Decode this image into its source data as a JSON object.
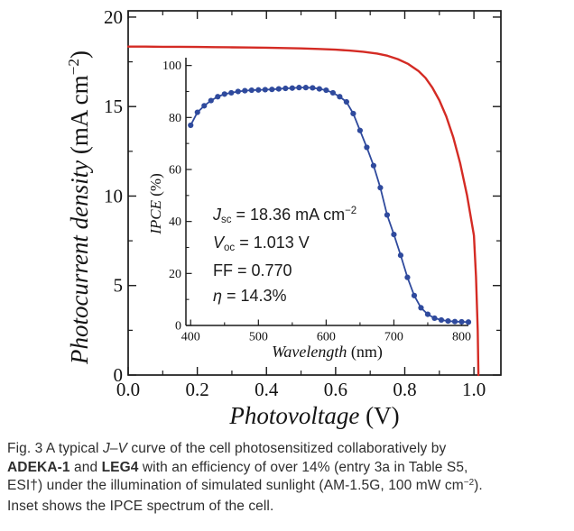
{
  "figure": {
    "background": "#ffffff",
    "axis_color": "#1a1a1a",
    "jv_color": "#d42b24",
    "ipce_color": "#2f4a9d"
  },
  "chart_data": [
    {
      "type": "line",
      "title": "",
      "xlabel": "Photovoltage (V)",
      "ylabel": "Photocurrent density (mA cm−2)",
      "xlim": [
        0,
        1.078
      ],
      "ylim": [
        0,
        20.35
      ],
      "grid": false,
      "legend": false,
      "xticks": [
        0,
        0.2,
        0.4,
        0.6,
        0.8,
        1.0
      ],
      "xtick_labels": [
        "0.0",
        "0.2",
        "0.4",
        "0.6",
        "0.8",
        "1.0"
      ],
      "xticks_minor": [
        0.1,
        0.3,
        0.5,
        0.7,
        0.9
      ],
      "yticks": [
        0,
        5,
        10,
        15,
        20
      ],
      "ytick_labels": [
        "0",
        "5",
        "10",
        "15",
        "20"
      ],
      "yticks_minor": [
        2.5,
        7.5,
        12.5,
        17.5
      ],
      "series": [
        {
          "name": "J-V curve",
          "color": "#d42b24",
          "x": [
            0.0,
            0.05,
            0.1,
            0.15,
            0.2,
            0.25,
            0.3,
            0.35,
            0.4,
            0.45,
            0.5,
            0.55,
            0.6,
            0.64,
            0.68,
            0.72,
            0.75,
            0.78,
            0.81,
            0.84,
            0.86,
            0.88,
            0.9,
            0.92,
            0.94,
            0.96,
            0.98,
            1.0,
            1.006,
            1.011,
            1.013
          ],
          "y": [
            18.35,
            18.35,
            18.34,
            18.34,
            18.33,
            18.32,
            18.31,
            18.3,
            18.29,
            18.27,
            18.25,
            18.22,
            18.18,
            18.13,
            18.06,
            17.96,
            17.84,
            17.65,
            17.38,
            16.98,
            16.6,
            16.05,
            15.35,
            14.45,
            13.3,
            11.85,
            10.05,
            7.8,
            5.5,
            2.5,
            0.0
          ]
        }
      ]
    },
    {
      "type": "line",
      "title": "",
      "xlabel": "Wavelength (nm)",
      "ylabel": "IPCE (%)",
      "xlim": [
        393,
        810
      ],
      "ylim": [
        0,
        103
      ],
      "grid": false,
      "legend": false,
      "markers": true,
      "xticks": [
        400,
        500,
        600,
        700,
        800
      ],
      "xtick_labels": [
        "400",
        "500",
        "600",
        "700",
        "800"
      ],
      "xticks_minor": [
        450,
        550,
        650,
        750
      ],
      "yticks": [
        0,
        20,
        40,
        60,
        80,
        100
      ],
      "ytick_labels": [
        "0",
        "20",
        "40",
        "60",
        "80",
        "100"
      ],
      "yticks_minor": [
        10,
        30,
        50,
        70,
        90
      ],
      "series": [
        {
          "name": "IPCE spectrum",
          "color": "#2f4a9d",
          "x": [
            400,
            410,
            420,
            430,
            440,
            450,
            460,
            470,
            480,
            490,
            500,
            510,
            520,
            530,
            540,
            550,
            560,
            570,
            580,
            590,
            600,
            610,
            620,
            630,
            640,
            650,
            660,
            670,
            680,
            690,
            700,
            710,
            720,
            730,
            740,
            750,
            760,
            770,
            780,
            790,
            800,
            810
          ],
          "y": [
            77,
            82,
            84.5,
            86.5,
            88,
            89,
            89.5,
            90,
            90.3,
            90.5,
            90.6,
            90.7,
            90.8,
            91,
            91.2,
            91.3,
            91.5,
            91.5,
            91.4,
            91,
            90.5,
            89.5,
            88,
            86,
            81.5,
            75,
            68.5,
            61.5,
            53,
            42.5,
            35,
            27,
            18.5,
            11.5,
            6.8,
            4.3,
            2.8,
            2.1,
            1.7,
            1.5,
            1.4,
            1.3
          ]
        }
      ]
    }
  ],
  "labels": {
    "main_x": [
      {
        "t": "Photovoltage",
        "i": true
      },
      {
        "t": " (V)"
      }
    ],
    "main_y": [
      {
        "t": "Photocurrent density",
        "i": true
      },
      {
        "t": " (mA cm"
      },
      {
        "t": "−2",
        "sup": true
      },
      {
        "t": ")"
      }
    ],
    "inset_x": [
      {
        "t": "Wavelength",
        "i": true
      },
      {
        "t": " (nm)"
      }
    ],
    "inset_y": [
      {
        "t": "IPCE",
        "i": true
      },
      {
        "t": " (%)"
      }
    ]
  },
  "annotation": {
    "lines": [
      [
        {
          "t": "J",
          "i": true
        },
        {
          "t": "sc",
          "sub": true
        },
        {
          "t": " = 18.36 mA cm"
        },
        {
          "t": "−2",
          "sup": true
        }
      ],
      [
        {
          "t": "V",
          "i": true
        },
        {
          "t": "oc",
          "sub": true
        },
        {
          "t": " = 1.013 V"
        }
      ],
      [
        {
          "t": "FF = 0.770"
        }
      ],
      [
        {
          "t": "η",
          "i": true
        },
        {
          "t": " = 14.3%"
        }
      ]
    ]
  },
  "caption": {
    "lines": [
      [
        {
          "t": "Fig. 3"
        },
        {
          "t": "  A typical "
        },
        {
          "t": "J–V",
          "i": true
        },
        {
          "t": " curve of the cell photosensitized collaboratively by"
        }
      ],
      [
        {
          "t": "ADEKA-1",
          "b": true
        },
        {
          "t": " and "
        },
        {
          "t": "LEG4",
          "b": true
        },
        {
          "t": " with an efficiency of over 14% (entry 3a in Table S5,"
        }
      ],
      [
        {
          "t": "ESI†) under the illumination of simulated sunlight (AM-1.5G, 100 mW cm"
        },
        {
          "t": "−2",
          "sup": true
        },
        {
          "t": ")."
        }
      ],
      [
        {
          "t": "Inset shows the IPCE spectrum of the cell."
        }
      ]
    ]
  }
}
